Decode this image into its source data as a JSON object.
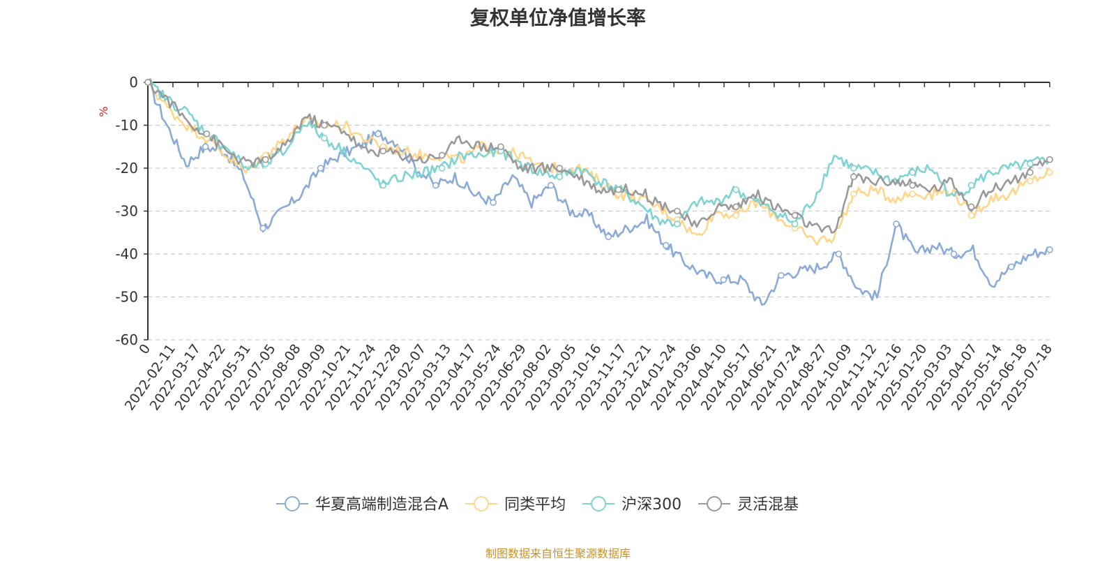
{
  "title": "复权单位净值增长率",
  "source": "制图数据来自恒生聚源数据库",
  "chart_data": {
    "type": "line",
    "title": "复权单位净值增长率",
    "ylabel": "%",
    "ylim": [
      -60,
      0
    ],
    "y_ticks": [
      0,
      -10,
      -20,
      -30,
      -40,
      -50,
      -60
    ],
    "x_ticks": [
      "0",
      "2022-02-11",
      "2022-03-17",
      "2022-04-22",
      "2022-05-31",
      "2022-07-05",
      "2022-08-08",
      "2022-09-09",
      "2022-10-21",
      "2022-11-24",
      "2022-12-28",
      "2023-02-07",
      "2023-03-13",
      "2023-04-17",
      "2023-05-24",
      "2023-06-29",
      "2023-08-02",
      "2023-09-05",
      "2023-10-16",
      "2023-11-17",
      "2023-12-21",
      "2024-01-24",
      "2024-03-06",
      "2024-04-10",
      "2024-05-17",
      "2024-06-21",
      "2024-07-24",
      "2024-08-27",
      "2024-10-09",
      "2024-11-12",
      "2024-12-16",
      "2025-01-20",
      "2025-03-03",
      "2025-04-07",
      "2025-05-14",
      "2025-06-18",
      "2025-07-18"
    ],
    "grid": true,
    "legend_position": "bottom",
    "series": [
      {
        "name": "华夏高端制造混合A",
        "color": "#8aaad8",
        "values": [
          0,
          -10,
          -19,
          -15,
          -16,
          -22,
          -34,
          -30,
          -26,
          -20,
          -17,
          -15,
          -12,
          -14,
          -20,
          -24,
          -22,
          -26,
          -28,
          -22,
          -28,
          -24,
          -30,
          -31,
          -36,
          -34,
          -32,
          -38,
          -42,
          -45,
          -46,
          -46,
          -52,
          -45,
          -44,
          -43,
          -40,
          -48,
          -50,
          -33,
          -40,
          -38,
          -40,
          -39,
          -47,
          -43,
          -40,
          -39
        ]
      },
      {
        "name": "同类平均",
        "color": "#ffd68a",
        "values": [
          0,
          -6,
          -10,
          -13,
          -17,
          -21,
          -17,
          -13,
          -9,
          -10,
          -10,
          -13,
          -15,
          -16,
          -17,
          -17,
          -18,
          -15,
          -16,
          -17,
          -20,
          -20,
          -20,
          -23,
          -26,
          -27,
          -29,
          -32,
          -36,
          -30,
          -31,
          -28,
          -31,
          -34,
          -37,
          -36,
          -26,
          -25,
          -27,
          -26,
          -26,
          -25,
          -31,
          -27,
          -26,
          -23,
          -21
        ]
      },
      {
        "name": "沪深300",
        "color": "#7fd3d3",
        "values": [
          0,
          -4,
          -7,
          -12,
          -15,
          -20,
          -19,
          -16,
          -9,
          -13,
          -16,
          -20,
          -24,
          -22,
          -21,
          -20,
          -17,
          -17,
          -16,
          -19,
          -21,
          -22,
          -20,
          -23,
          -25,
          -28,
          -32,
          -33,
          -28,
          -28,
          -25,
          -28,
          -30,
          -33,
          -27,
          -17,
          -20,
          -21,
          -23,
          -21,
          -20,
          -27,
          -24,
          -21,
          -20,
          -19,
          -18
        ]
      },
      {
        "name": "灵活混基",
        "color": "#999999",
        "values": [
          0,
          -4,
          -9,
          -12,
          -16,
          -19,
          -18,
          -15,
          -8,
          -10,
          -11,
          -16,
          -16,
          -17,
          -18,
          -17,
          -13,
          -15,
          -15,
          -20,
          -20,
          -20,
          -22,
          -25,
          -25,
          -25,
          -28,
          -30,
          -34,
          -29,
          -29,
          -26,
          -29,
          -31,
          -34,
          -35,
          -22,
          -23,
          -23,
          -24,
          -25,
          -23,
          -29,
          -25,
          -23,
          -21,
          -18
        ]
      }
    ]
  }
}
